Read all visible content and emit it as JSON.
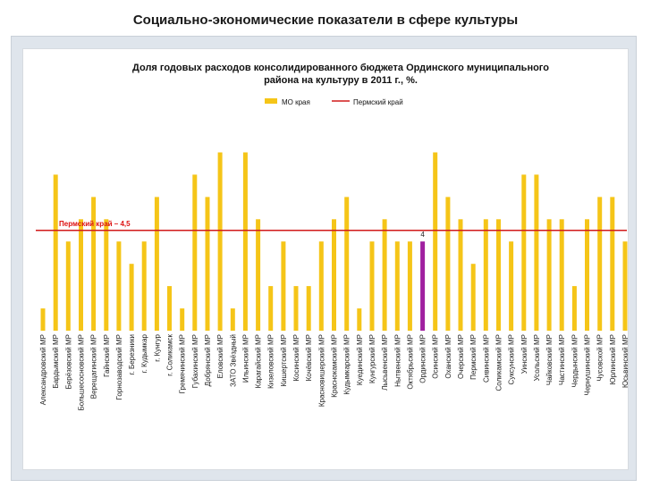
{
  "page": {
    "title": "Социально-экономические показатели в сфере культуры"
  },
  "chart_data": {
    "type": "bar",
    "title_line1": "Доля годовых расходов консолидированного бюджета Ординского муниципального",
    "title_line2": "района на культуру в 2011 г., %.",
    "legend": {
      "series_label": "МО края",
      "reference_label": "Пермский край"
    },
    "reference_line": {
      "name": "Пермский край",
      "value": 4.5,
      "label": "Пермский край – 4,5"
    },
    "highlight": {
      "category": "Ординский МР",
      "value": 4,
      "label": "4"
    },
    "colors": {
      "bar": "#f5c518",
      "highlight": "#a020a0",
      "reference": "#d11a1a"
    },
    "ylim": [
      0,
      8.5
    ],
    "grid": false,
    "categories": [
      "Александровский МР",
      "Бардымский МР",
      "Берёзовский МР",
      "Большесосновский МР",
      "Верещагинский МР",
      "Гайнский МР",
      "Горнозаводский МР",
      "г. Березники",
      "г. Кудымкар",
      "г. Кунгур",
      "г. Соликамск",
      "Гремячинский МР",
      "Губахинский МР",
      "Добрянский МР",
      "Еловский МР",
      "ЗАТО Звёздный",
      "Ильинский МР",
      "Карагайский МР",
      "Кизеловский МР",
      "Кишертский МР",
      "Косинский МР",
      "Кочёвский МР",
      "Красновишерский МР",
      "Краснокамский МР",
      "Кудымкарский МР",
      "Куединский МР",
      "Кунгурский МР",
      "Лысьвенский МР",
      "Нытвенский МР",
      "Октябрьский МР",
      "Ординский МР",
      "Осинский МР",
      "Оханский МР",
      "Очерский МР",
      "Пермский МР",
      "Сивинский МР",
      "Соликамский МР",
      "Суксунский МР",
      "Уинский МР",
      "Усольский МР",
      "Чайковский МР",
      "Частинский МР",
      "Чердынский МР",
      "Чернушинский МР",
      "Чусовской МР",
      "Юрлинский МР",
      "Юсьвинский МР"
    ],
    "values": [
      1,
      7,
      4,
      5,
      6,
      5,
      4,
      3,
      4,
      6,
      2,
      1,
      7,
      6,
      8,
      1,
      8,
      5,
      2,
      4,
      2,
      2,
      4,
      5,
      6,
      1,
      4,
      5,
      4,
      4,
      4,
      8,
      6,
      5,
      3,
      5,
      5,
      4,
      7,
      7,
      5,
      5,
      2,
      5,
      6,
      6,
      4
    ]
  }
}
